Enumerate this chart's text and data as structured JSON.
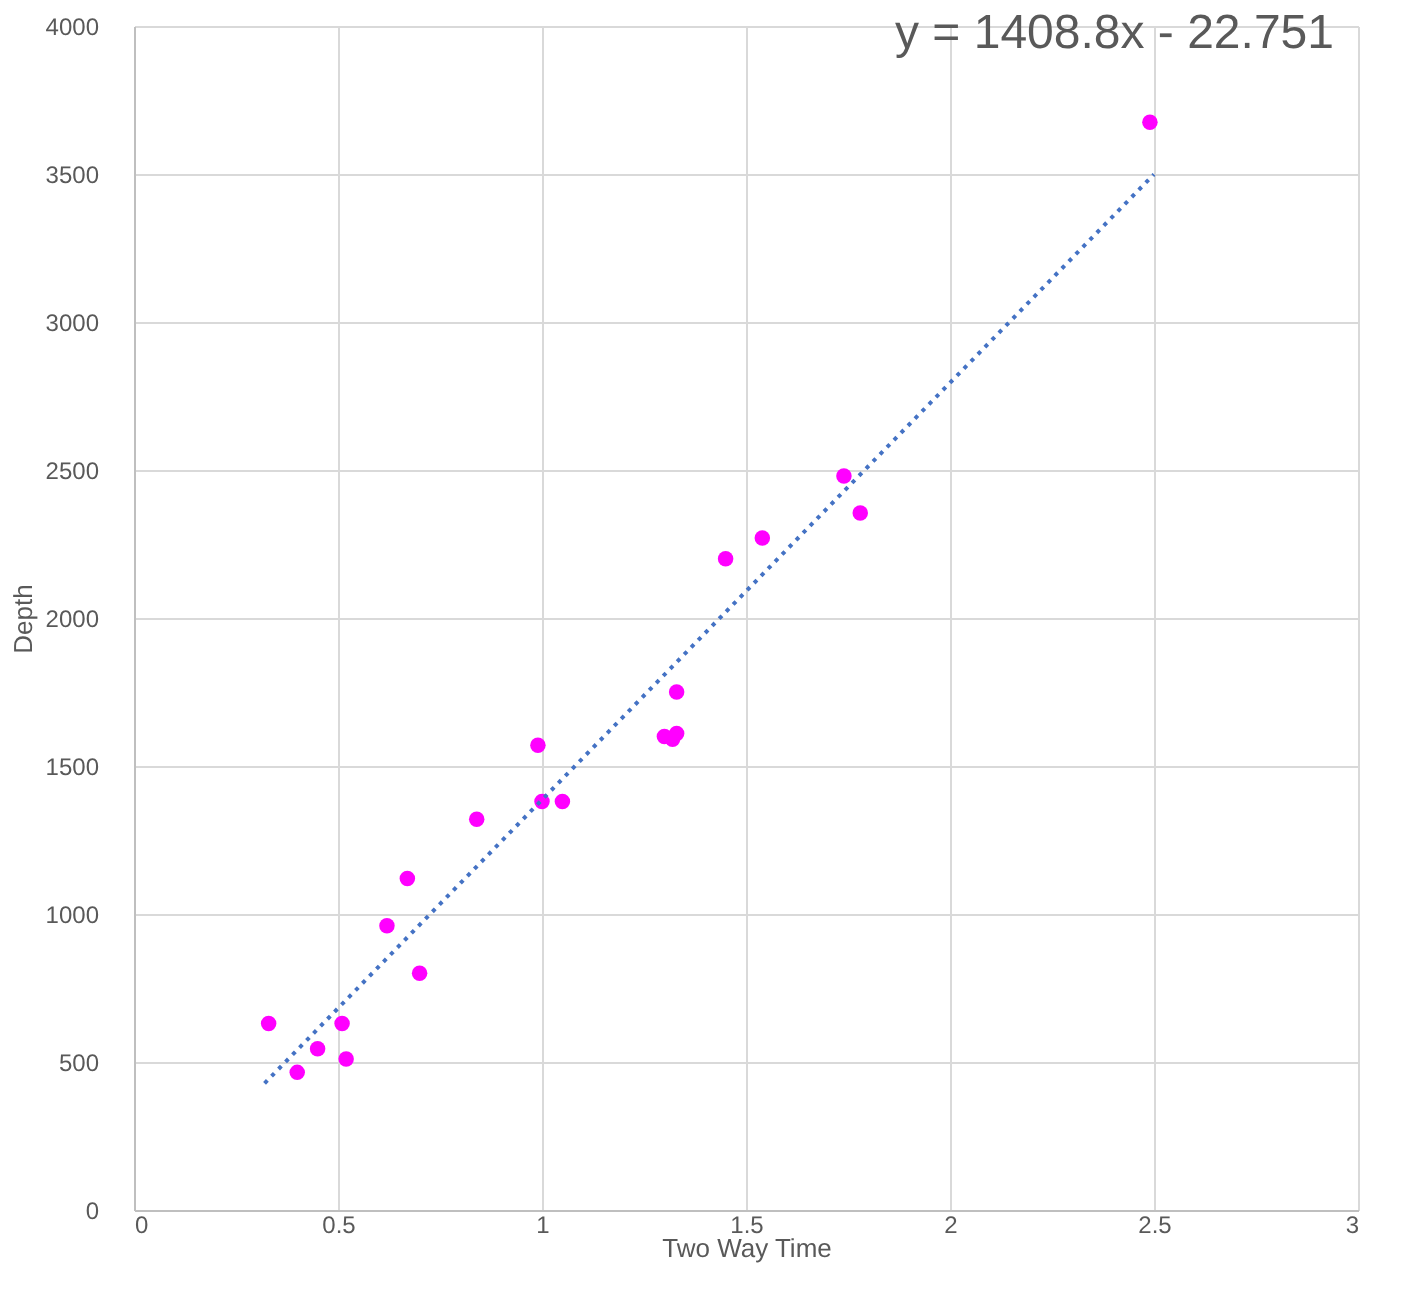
{
  "chart_data": {
    "type": "scatter",
    "xlabel": "Two Way Time",
    "ylabel": "Depth",
    "annotations": [
      "y = 1408.8x - 22.751"
    ],
    "series": [
      {
        "color": "#ff00ff",
        "marker": "circle",
        "x": [
          0.33,
          0.4,
          0.45,
          0.51,
          0.52,
          0.62,
          0.67,
          0.7,
          0.84,
          0.99,
          1.0,
          1.05,
          1.3,
          1.32,
          1.33,
          1.33,
          1.45,
          1.54,
          1.74,
          1.78,
          2.49
        ],
        "values": [
          630,
          465,
          545,
          630,
          510,
          960,
          1120,
          800,
          1320,
          1570,
          1380,
          1380,
          1600,
          1590,
          1610,
          1750,
          2200,
          2270,
          2480,
          2355,
          3675
        ]
      },
      {
        "type": "line",
        "color": "#4472c4",
        "line_style": "dotted",
        "marker": "none",
        "x": [
          0.32,
          2.5
        ],
        "values": [
          428,
          3499
        ]
      }
    ],
    "xlim": [
      0,
      3
    ],
    "xticks": [
      0,
      0.5,
      1,
      1.5,
      2,
      2.5,
      3
    ],
    "ylim": [
      0,
      4000
    ],
    "yticks": [
      0,
      500,
      1000,
      1500,
      2000,
      2500,
      3000,
      3500,
      4000
    ],
    "grid": true
  }
}
